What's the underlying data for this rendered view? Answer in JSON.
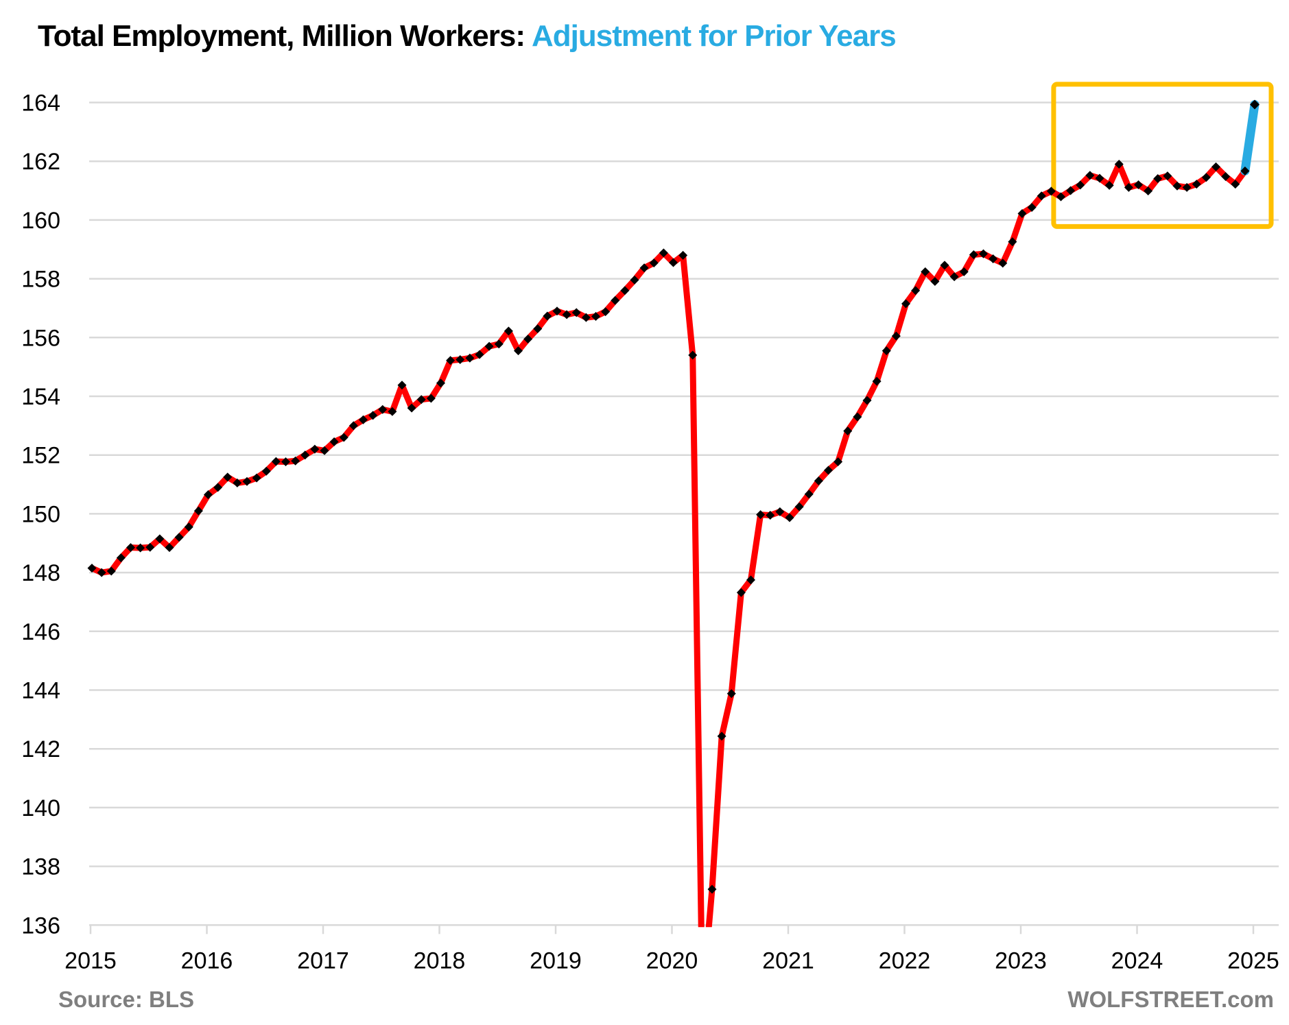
{
  "title": {
    "main": "Total Employment, Million Workers:",
    "highlight": "Adjustment for Prior Years",
    "highlight_color": "#29ABE2"
  },
  "footer": {
    "source": "Source: BLS",
    "watermark": "WOLFSTREET.com"
  },
  "chart_data": {
    "type": "line",
    "title": "Total Employment, Million Workers: Adjustment for Prior Years",
    "x_start": "2015-01",
    "x_end": "2025-01",
    "x_freq": "monthly",
    "x_tick_labels": [
      "2015",
      "2016",
      "2017",
      "2018",
      "2019",
      "2020",
      "2021",
      "2022",
      "2023",
      "2024",
      "2025"
    ],
    "ylim": [
      136,
      164
    ],
    "y_tick_labels": [
      "136",
      "138",
      "140",
      "142",
      "144",
      "146",
      "148",
      "150",
      "152",
      "154",
      "156",
      "158",
      "160",
      "162",
      "164"
    ],
    "grid": "horizontal",
    "legend": "none",
    "colors": {
      "reported_line": "#FF0000",
      "adjustment_line": "#29ABE2",
      "marker": "#000000",
      "highlight_box": "#FFC000",
      "gridline": "#D9D9D9"
    },
    "note": "April 2020 value (133.4) falls below the visible axis range and is clipped at 136.",
    "series": [
      {
        "name": "employment-as-reported",
        "color": "#FF0000",
        "marker": "diamond",
        "start_month_index": 0,
        "values": [
          148.15,
          148.0,
          148.05,
          148.5,
          148.85,
          148.84,
          148.86,
          149.15,
          148.85,
          149.2,
          149.55,
          150.1,
          150.65,
          150.9,
          151.25,
          151.05,
          151.1,
          151.22,
          151.45,
          151.78,
          151.77,
          151.8,
          152.0,
          152.2,
          152.15,
          152.45,
          152.6,
          153.0,
          153.2,
          153.35,
          153.55,
          153.48,
          154.38,
          153.6,
          153.89,
          153.93,
          154.45,
          155.22,
          155.25,
          155.3,
          155.42,
          155.7,
          155.78,
          156.22,
          155.55,
          155.95,
          156.3,
          156.73,
          156.9,
          156.78,
          156.85,
          156.68,
          156.72,
          156.88,
          157.26,
          157.6,
          157.96,
          158.37,
          158.54,
          158.88,
          158.55,
          158.8,
          155.4,
          133.4,
          137.22,
          142.43,
          143.88,
          147.32,
          147.75,
          149.97,
          149.95,
          150.07,
          149.87,
          150.24,
          150.67,
          151.12,
          151.48,
          151.77,
          152.82,
          153.3,
          153.86,
          154.51,
          155.55,
          156.05,
          157.15,
          157.6,
          158.24,
          157.91,
          158.46,
          158.07,
          158.24,
          158.82,
          158.85,
          158.68,
          158.53,
          159.26,
          160.22,
          160.43,
          160.82,
          160.98,
          160.79,
          161.0,
          161.19,
          161.52,
          161.42,
          161.18,
          161.9,
          161.11,
          161.2,
          160.99,
          161.41,
          161.5,
          161.16,
          161.11,
          161.22,
          161.45,
          161.81,
          161.48,
          161.22,
          161.67
        ]
      },
      {
        "name": "jan-2025-population-adjustment",
        "color": "#29ABE2",
        "marker": "diamond-at-end",
        "start_month_index": 119,
        "values": [
          161.67,
          163.93
        ]
      }
    ],
    "highlight_box": {
      "color": "#FFC000",
      "x_from_month": 99.25,
      "x_to_month": 121.7,
      "y_from": 159.78,
      "y_to": 164.62
    }
  }
}
